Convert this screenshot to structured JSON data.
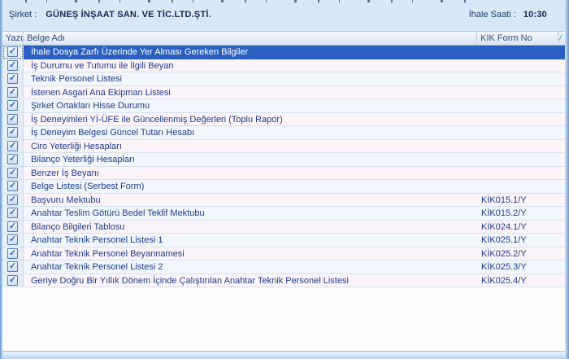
{
  "window": {
    "company_label": "Şirket :",
    "company_name": "GÜNEŞ İNŞAAT SAN. VE TİC.LTD.ŞTİ.",
    "time_label": "İhale Saati :",
    "time_value": "10:30"
  },
  "table": {
    "columns": {
      "print": "Yazdır",
      "doc_name": "Belge Adı",
      "form_no": "KIK Form No",
      "sort_glyph": "/"
    },
    "rows": [
      {
        "checked": true,
        "selected": true,
        "name": "İhale Dosya Zarfı Üzerinde Yer Alması Gereken Bilgiler",
        "form": ""
      },
      {
        "checked": true,
        "name": "İş Durumu ve Tutumu ile İlgili Beyan",
        "form": ""
      },
      {
        "checked": true,
        "name": "Teknik Personel Listesi",
        "form": ""
      },
      {
        "checked": true,
        "name": "İstenen Asgari Ana Ekipman Listesi",
        "form": ""
      },
      {
        "checked": true,
        "name": "Şirket Ortakları Hisse Durumu",
        "form": ""
      },
      {
        "checked": true,
        "name": "İş Deneyimleri Yİ-ÜFE ile Güncellenmiş Değerleri (Toplu Rapor)",
        "form": ""
      },
      {
        "checked": true,
        "name": "İş Deneyim Belgesi Güncel Tutarı Hesabı",
        "form": ""
      },
      {
        "checked": true,
        "name": "Ciro Yeterliği Hesapları",
        "form": ""
      },
      {
        "checked": true,
        "name": "Bilanço Yeterliği Hesapları",
        "form": ""
      },
      {
        "checked": true,
        "name": "Benzer İş Beyanı",
        "form": ""
      },
      {
        "checked": true,
        "name": "Belge Listesi (Serbest Form)",
        "form": ""
      },
      {
        "checked": true,
        "name": "Başvuru Mektubu",
        "form": "KİK015.1/Y"
      },
      {
        "checked": true,
        "name": "Anahtar Teslim Götürü Bedel Teklif Mektubu",
        "form": "KİK015.2/Y"
      },
      {
        "checked": true,
        "name": "Bilanço Bilgileri Tablosu",
        "form": "KİK024.1/Y"
      },
      {
        "checked": true,
        "name": "Anahtar Teknik Personel Listesi 1",
        "form": "KİK025.1/Y"
      },
      {
        "checked": true,
        "name": "Anahtar Teknik Personel Beyannamesi",
        "form": "KİK025.2/Y"
      },
      {
        "checked": true,
        "name": "Anahtar Teknik Personel Listesi 2",
        "form": "KİK025.3/Y"
      },
      {
        "checked": true,
        "name": "Geriye Doğru Bir Yıllık Dönem İçinde Çalıştırılan Anahtar Teknik Personel Listesi",
        "form": "KİK025.4/Y"
      }
    ]
  },
  "colors": {
    "selected_row": "#2b5fc1",
    "alt_row_blue": "#f1f7fd",
    "alt_row_pink": "#fdf4f9",
    "panel_bg": "#d9e7f8",
    "grid_text": "#1d3c8c"
  }
}
